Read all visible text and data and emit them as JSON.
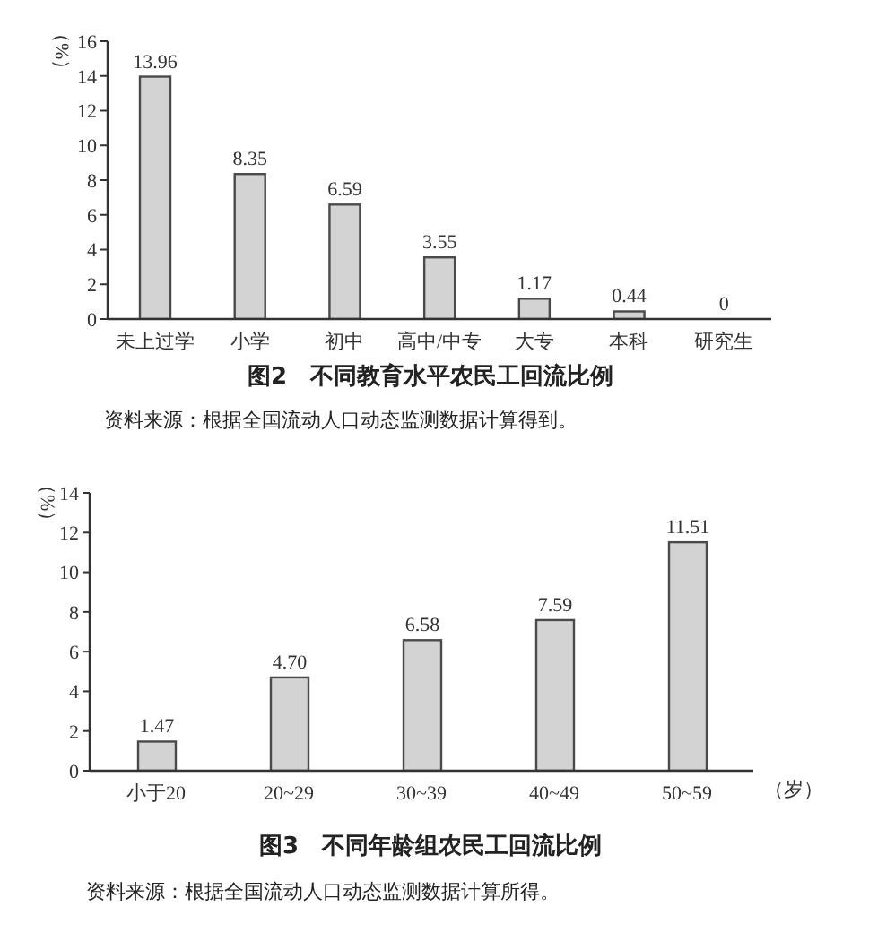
{
  "chart_data": [
    {
      "type": "bar",
      "title": "图2　不同教育水平农民工回流比例",
      "ylabel": "（%）",
      "categories": [
        "未上过学",
        "小学",
        "初中",
        "高中/中专",
        "大专",
        "本科",
        "研究生"
      ],
      "values": [
        13.96,
        8.35,
        6.59,
        3.55,
        1.17,
        0.44,
        0
      ],
      "color": "#d3d3d3",
      "ylim": [
        0,
        16
      ],
      "yticks": [
        0,
        2,
        4,
        6,
        8,
        10,
        12,
        14,
        16
      ],
      "data_labels": true,
      "annotations": [
        "资料来源：根据全国流动人口动态监测数据计算得到。"
      ]
    },
    {
      "type": "bar",
      "title": "图3　不同年龄组农民工回流比例",
      "ylabel": "（%）",
      "xlabel": "（岁）",
      "categories": [
        "小于20",
        "20~29",
        "30~39",
        "40~49",
        "50~59"
      ],
      "values": [
        1.47,
        4.7,
        6.58,
        7.59,
        11.51
      ],
      "value_labels": [
        "1.47",
        "4.70",
        "6.58",
        "7.59",
        "11.51"
      ],
      "color": "#d3d3d3",
      "ylim": [
        0,
        14
      ],
      "yticks": [
        0,
        2,
        4,
        6,
        8,
        10,
        12,
        14
      ],
      "annotations": [
        "资料来源：根据全国流动人口动态监测数据计算所得。"
      ]
    }
  ]
}
